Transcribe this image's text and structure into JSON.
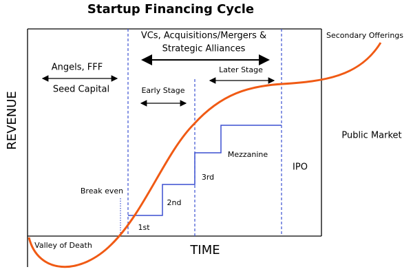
{
  "title": "Startup Financing Cycle",
  "labels": {
    "vcs_line1": "VCs, Acquisitions/Mergers &",
    "vcs_line2": "Strategic Alliances",
    "angels": "Angels, FFF",
    "seed": "Seed Capital",
    "later": "Later Stage",
    "early": "Early Stage",
    "secondary": "Secondary Offerings",
    "public": "Public Market",
    "revenue": "REVENUE",
    "mezzanine": "Mezzanine",
    "ipo": "IPO",
    "third": "3rd",
    "break_even": "Break even",
    "second": "2nd",
    "first": "1st",
    "time": "TIME",
    "valley": "Valley of Death"
  }
}
